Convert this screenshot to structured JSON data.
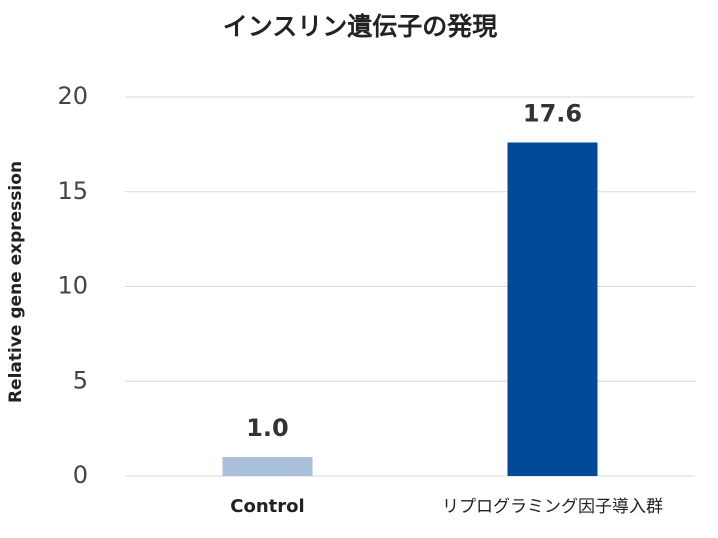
{
  "chart_data": {
    "type": "bar",
    "title": "インスリン遺伝子の発現",
    "y_label": "Relative gene expression",
    "categories": [
      "Control",
      "リプログラミング因子導入群"
    ],
    "values": [
      1.0,
      17.6
    ],
    "value_labels": [
      "1.0",
      "17.6"
    ],
    "colors": [
      "#a9bfdc",
      "#004a97"
    ],
    "ylim": [
      0,
      20
    ],
    "yticks": [
      0,
      5,
      10,
      15,
      20
    ],
    "grid": true
  }
}
